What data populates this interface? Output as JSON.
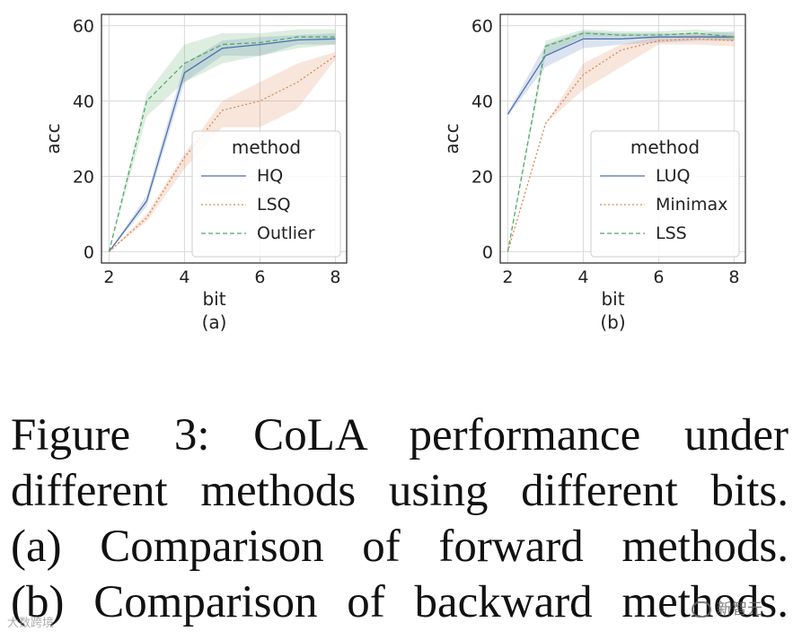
{
  "chart_data": [
    {
      "id": "a",
      "type": "line",
      "sublabel": "(a)",
      "xlabel": "bit",
      "ylabel": "acc",
      "xlim": [
        1.8,
        8.3
      ],
      "ylim": [
        -3,
        63
      ],
      "xticks": [
        2,
        4,
        6,
        8
      ],
      "yticks": [
        0,
        20,
        40,
        60
      ],
      "grid": true,
      "legend": {
        "title": "method",
        "placement": "lower-right"
      },
      "x": [
        2,
        3,
        4,
        5,
        6,
        7,
        8
      ],
      "series": [
        {
          "name": "HQ",
          "color": "#4c72b0",
          "dash": "solid",
          "values": [
            0,
            13.5,
            47.5,
            54,
            55,
            56.2,
            56.5
          ],
          "lower": [
            0,
            12,
            45,
            52,
            52,
            55,
            55
          ],
          "upper": [
            0,
            15,
            50,
            56,
            57,
            57.5,
            58
          ]
        },
        {
          "name": "LSQ",
          "color": "#dd8452",
          "dash": "dotted",
          "values": [
            0,
            9,
            25,
            37.5,
            40,
            45,
            52
          ],
          "lower": [
            0,
            8,
            22,
            33,
            33,
            38,
            51
          ],
          "upper": [
            0,
            10,
            26,
            40,
            45,
            50,
            53
          ]
        },
        {
          "name": "Outlier",
          "color": "#55a868",
          "dash": "dashed",
          "values": [
            0,
            40,
            50,
            55,
            55.5,
            57,
            57
          ],
          "lower": [
            0,
            36,
            45,
            50,
            52,
            54,
            55
          ],
          "upper": [
            0,
            42,
            55,
            58,
            58,
            59,
            59
          ]
        }
      ]
    },
    {
      "id": "b",
      "type": "line",
      "sublabel": "(b)",
      "xlabel": "bit",
      "ylabel": "acc",
      "xlim": [
        1.8,
        8.3
      ],
      "ylim": [
        -3,
        63
      ],
      "xticks": [
        2,
        4,
        6,
        8
      ],
      "yticks": [
        0,
        20,
        40,
        60
      ],
      "grid": true,
      "legend": {
        "title": "method",
        "placement": "lower-right"
      },
      "x": [
        2,
        3,
        4,
        5,
        6,
        7,
        8
      ],
      "series": [
        {
          "name": "LUQ",
          "color": "#4c72b0",
          "dash": "solid",
          "values": [
            36.5,
            52,
            56.5,
            56.5,
            57,
            57,
            57
          ],
          "lower": [
            36,
            49,
            54,
            55,
            55.5,
            56,
            56
          ],
          "upper": [
            37,
            55,
            58.5,
            58,
            58,
            58,
            58.5
          ]
        },
        {
          "name": "Minimax",
          "color": "#dd8452",
          "dash": "dotted",
          "values": [
            0,
            34,
            47,
            53.5,
            56,
            56.5,
            56
          ],
          "lower": [
            0,
            34,
            43,
            49,
            55,
            55,
            54.5
          ],
          "upper": [
            0,
            34,
            50,
            55,
            57,
            57.5,
            57.5
          ]
        },
        {
          "name": "LSS",
          "color": "#55a868",
          "dash": "dashed",
          "values": [
            0,
            54.5,
            58,
            57.5,
            57.5,
            58,
            57
          ],
          "lower": [
            0,
            52,
            57,
            57,
            57,
            57,
            56
          ],
          "upper": [
            0,
            56,
            59,
            58.5,
            58.5,
            59,
            58
          ]
        }
      ]
    }
  ],
  "caption": {
    "lines": [
      "Figure 3:  CoLA performance under",
      "different methods using different bits.",
      "(a) Comparison of forward methods.",
      "(b) Comparison of backward methods."
    ]
  },
  "watermarks": {
    "left": "大数跨境",
    "right": "新智元"
  }
}
